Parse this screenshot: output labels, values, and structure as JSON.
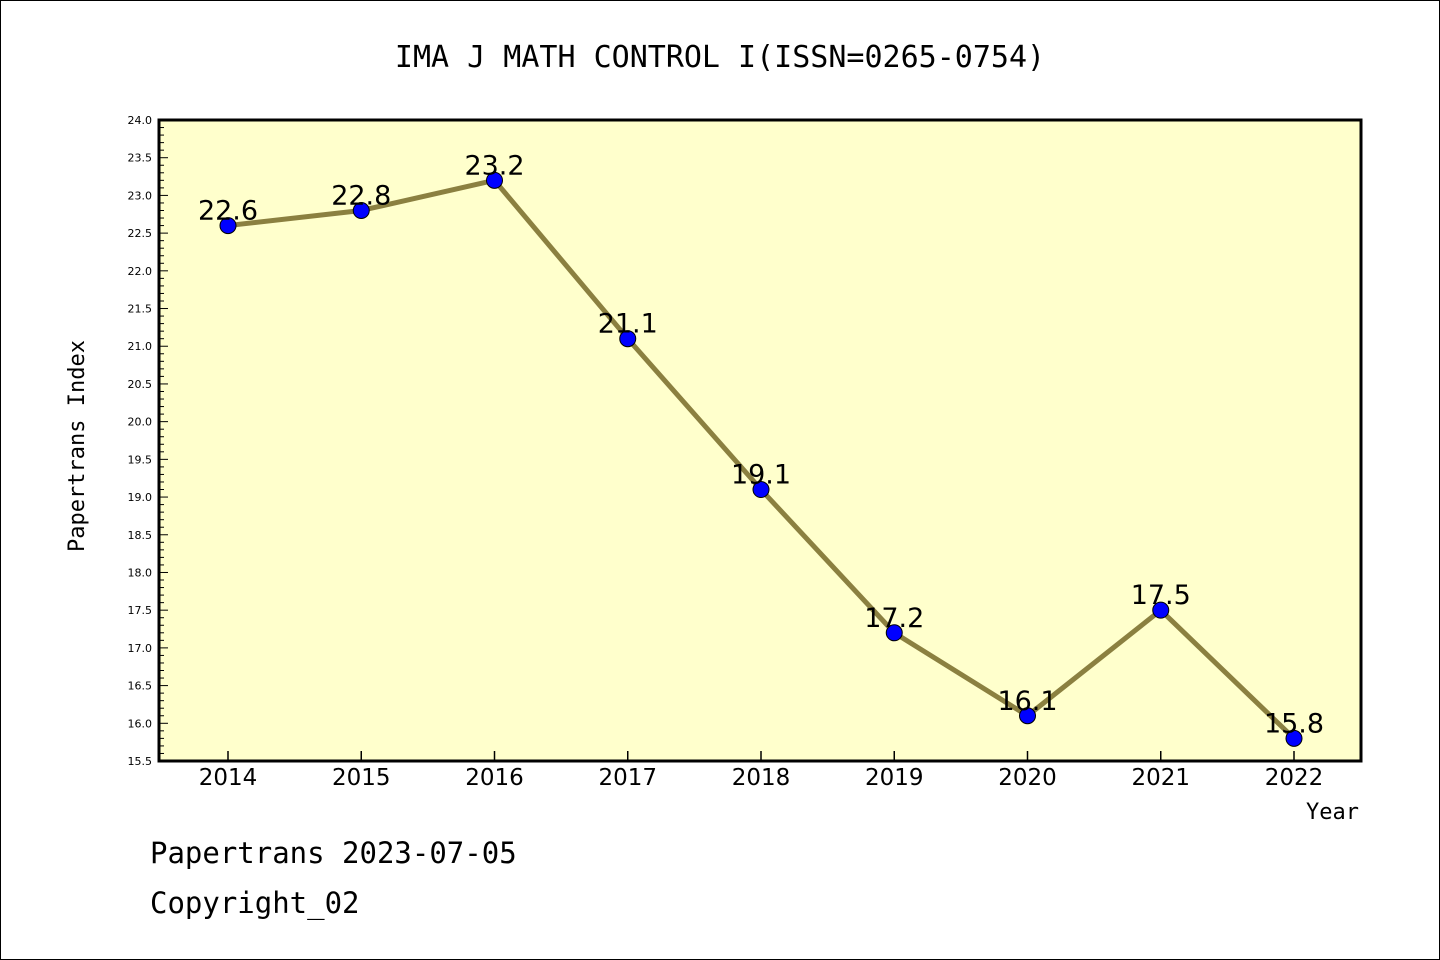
{
  "chart_data": {
    "type": "line",
    "title": "IMA J MATH CONTROL I(ISSN=0265-0754)",
    "xlabel": "Year",
    "ylabel": "Papertrans Index",
    "categories": [
      "2014",
      "2015",
      "2016",
      "2017",
      "2018",
      "2019",
      "2020",
      "2021",
      "2022"
    ],
    "values": [
      22.6,
      22.8,
      23.2,
      21.1,
      19.1,
      17.2,
      16.1,
      17.5,
      15.8
    ],
    "value_labels": [
      "22.6",
      "22.8",
      "23.2",
      "21.1",
      "19.1",
      "17.2",
      "16.1",
      "17.5",
      "15.8"
    ],
    "ylim": [
      15.5,
      24.0
    ],
    "yticks": [
      "15.5",
      "16.0",
      "16.5",
      "17.0",
      "17.5",
      "18.0",
      "18.5",
      "19.0",
      "19.5",
      "20.0",
      "20.5",
      "21.0",
      "21.5",
      "22.0",
      "22.5",
      "23.0",
      "23.5",
      "24.0"
    ],
    "grid": false,
    "colors": {
      "plot_background": "#ffffcc",
      "line": "#8b8040",
      "marker": "#0000ff"
    }
  },
  "footer": {
    "line1": "Papertrans 2023-07-05",
    "line2": "Copyright_02"
  }
}
